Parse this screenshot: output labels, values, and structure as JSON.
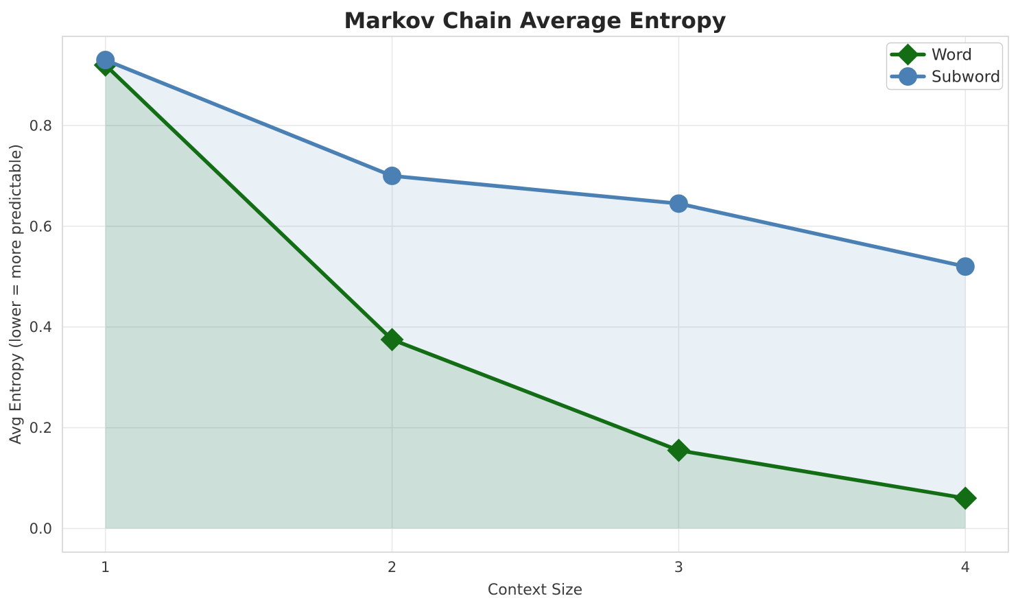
{
  "chart_data": {
    "type": "line",
    "title": "Markov Chain Average Entropy",
    "xlabel": "Context Size",
    "ylabel": "Avg Entropy (lower = more predictable)",
    "x": [
      1,
      2,
      3,
      4
    ],
    "series": [
      {
        "name": "Word",
        "values": [
          0.92,
          0.375,
          0.155,
          0.06
        ],
        "color": "#126d15",
        "marker": "diamond",
        "marker_size": 17,
        "line_width": 5.5,
        "fill_to_zero": true,
        "fill_opacity": 0.13
      },
      {
        "name": "Subword",
        "values": [
          0.93,
          0.7,
          0.645,
          0.52
        ],
        "color": "#4a80b3",
        "marker": "circle",
        "marker_size": 13.5,
        "line_width": 5.5,
        "fill_to_zero": true,
        "fill_opacity": 0.12
      }
    ],
    "xticks": [
      1,
      2,
      3,
      4
    ],
    "xtick_labels": [
      "1",
      "2",
      "3",
      "4"
    ],
    "yticks": [
      0.0,
      0.2,
      0.4,
      0.6,
      0.8
    ],
    "ytick_labels": [
      "0.0",
      "0.2",
      "0.4",
      "0.6",
      "0.8"
    ],
    "xlim": [
      0.85,
      4.15
    ],
    "ylim": [
      -0.047,
      0.977
    ],
    "grid": true,
    "legend_position": "upper right",
    "style": {
      "grid_color": "#e7e7e7",
      "spine_color": "#d4d4d4",
      "plot_background": "#ffffff",
      "figure_background": "#ffffff",
      "text_color": "#3b3b3b",
      "title_color": "#262626",
      "legend_border_color": "#cccccc",
      "legend_background": "#ffffff"
    }
  }
}
